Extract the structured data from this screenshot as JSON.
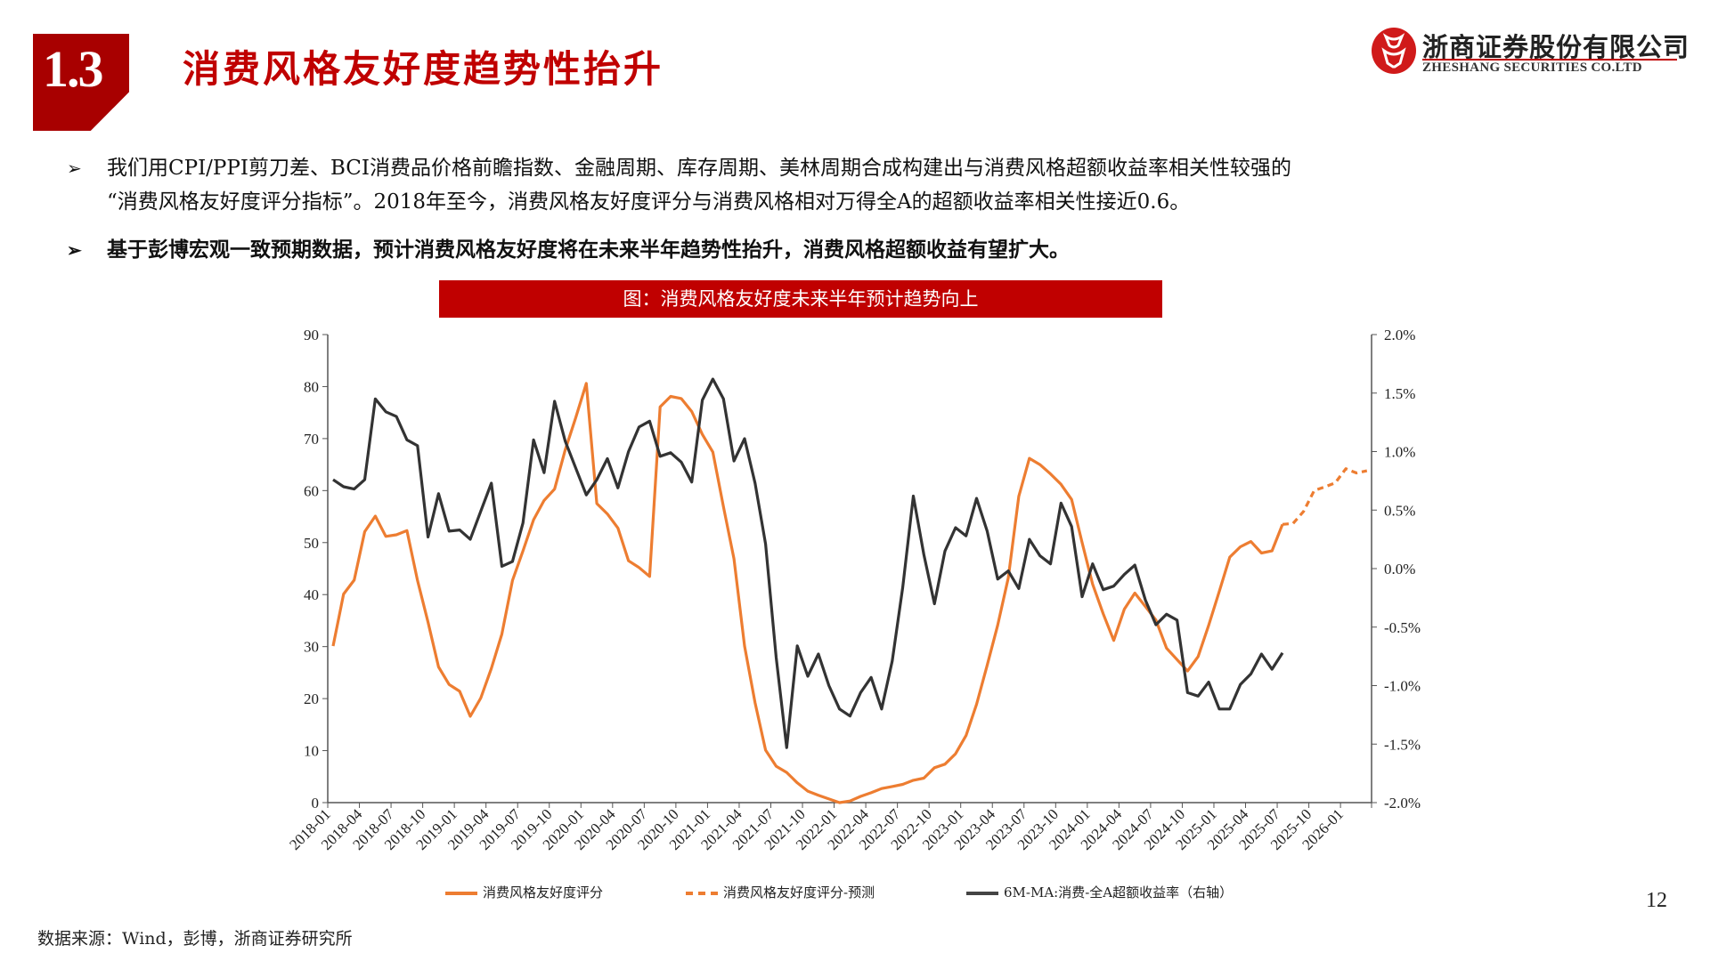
{
  "header": {
    "section_number": "1.3",
    "title": "消费风格友好度趋势性抬升",
    "logo": {
      "icon": "zheshang-logo-icon",
      "name_cn": "浙商证券股份有限公司",
      "name_en": "ZHESHANG SECURITIES CO.LTD"
    }
  },
  "bullets": [
    {
      "icon": "arrow-bullet-icon",
      "glyph": "➢",
      "line1": "我们用CPI/PPI剪刀差、BCI消费品价格前瞻指数、金融周期、库存周期、美林周期合成构建出与消费风格超额收益率相关性较强的",
      "line2": "“消费风格友好度评分指标”。2018年至今，消费风格友好度评分与消费风格相对万得全A的超额收益率相关性接近0.6。"
    },
    {
      "icon": "arrow-bullet-icon",
      "glyph": "➢",
      "line1": "基于彭博宏观一致预期数据，预计消费风格友好度将在未来半年趋势性抬升，消费风格超额收益有望扩大。"
    }
  ],
  "chart_title": "图：消费风格友好度未来半年预计趋势向上",
  "colors": {
    "brand_red": "#c00000",
    "section_red": "#a80000",
    "orange": "#ed7d31",
    "dark": "#333333"
  },
  "chart_data": {
    "type": "line",
    "title": "图：消费风格友好度未来半年预计趋势向上",
    "xlabel": "",
    "ylabel_left": "",
    "ylabel_right": "",
    "x_start": "2018-01",
    "x_frequency": "monthly",
    "x_tick_labels": [
      "2018-01",
      "2018-04",
      "2018-07",
      "2018-10",
      "2019-01",
      "2019-04",
      "2019-07",
      "2019-10",
      "2020-01",
      "2020-04",
      "2020-07",
      "2020-10",
      "2021-01",
      "2021-04",
      "2021-07",
      "2021-10",
      "2022-01",
      "2022-04",
      "2022-07",
      "2022-10",
      "2023-01",
      "2023-04",
      "2023-07",
      "2023-10",
      "2024-01",
      "2024-04",
      "2024-07",
      "2024-10",
      "2025-01",
      "2025-04",
      "2025-07",
      "2025-10",
      "2026-01"
    ],
    "y_left": {
      "min": 0,
      "max": 90,
      "ticks": [
        "0",
        "10",
        "20",
        "30",
        "40",
        "50",
        "60",
        "70",
        "80",
        "90"
      ]
    },
    "y_right": {
      "min": -2.0,
      "max": 2.0,
      "ticks": [
        "-2.0%",
        "-1.5%",
        "-1.0%",
        "-0.5%",
        "0.0%",
        "0.5%",
        "1.0%",
        "1.5%",
        "2.0%"
      ]
    },
    "grid": false,
    "legend_position": "bottom",
    "series": [
      {
        "name": "消费风格友好度评分",
        "axis": "left",
        "style": "solid",
        "color": "#ed7d31",
        "start_index": 0,
        "values": [
          30.1,
          40.1,
          42.8,
          52.1,
          55.1,
          51.2,
          51.5,
          52.3,
          42.7,
          34.7,
          26.1,
          22.7,
          21.4,
          16.6,
          20.1,
          25.8,
          32.4,
          42.7,
          48.4,
          54.4,
          58.1,
          60.3,
          67.8,
          74.0,
          80.6,
          57.5,
          55.5,
          52.8,
          46.5,
          45.2,
          43.5,
          76.1,
          78.1,
          77.7,
          75.2,
          70.8,
          67.4,
          56.9,
          46.9,
          30.1,
          19.2,
          10.1,
          7.0,
          5.8,
          3.8,
          2.2,
          1.4,
          0.7,
          0.0,
          0.3,
          1.2,
          1.9,
          2.7,
          3.1,
          3.5,
          4.3,
          4.7,
          6.7,
          7.4,
          9.4,
          12.9,
          18.9,
          26.4,
          34.1,
          43.2,
          58.9,
          66.2,
          65.0,
          63.2,
          61.2,
          58.3,
          50.0,
          42.0,
          36.3,
          31.2,
          37.2,
          40.3,
          37.7,
          35.1,
          29.7,
          27.5,
          25.3,
          28.1,
          34.1,
          40.6,
          47.2,
          49.2,
          50.2,
          48.0,
          48.4,
          53.5
        ]
      },
      {
        "name": "消费风格友好度评分-预测",
        "axis": "left",
        "style": "dashed",
        "color": "#ed7d31",
        "start_index": 90,
        "values": [
          53.5,
          53.7,
          56.0,
          60.0,
          60.7,
          61.5,
          64.2,
          63.4,
          63.8
        ]
      },
      {
        "name": "6M-MA:消费-全A超额收益率（右轴）",
        "axis": "right",
        "unit": "%",
        "style": "solid",
        "color": "#333333",
        "start_index": 0,
        "values": [
          0.76,
          0.7,
          0.68,
          0.76,
          1.45,
          1.34,
          1.3,
          1.1,
          1.05,
          0.27,
          0.64,
          0.32,
          0.33,
          0.25,
          0.49,
          0.73,
          0.02,
          0.06,
          0.39,
          1.1,
          0.82,
          1.43,
          1.09,
          0.86,
          0.63,
          0.76,
          0.94,
          0.69,
          1.0,
          1.21,
          1.26,
          0.96,
          0.99,
          0.91,
          0.74,
          1.44,
          1.62,
          1.45,
          0.92,
          1.11,
          0.73,
          0.21,
          -0.76,
          -1.53,
          -0.66,
          -0.92,
          -0.73,
          -1.0,
          -1.2,
          -1.26,
          -1.06,
          -0.93,
          -1.2,
          -0.79,
          -0.16,
          0.62,
          0.12,
          -0.3,
          0.15,
          0.35,
          0.28,
          0.6,
          0.32,
          -0.09,
          -0.02,
          -0.17,
          0.25,
          0.11,
          0.04,
          0.56,
          0.36,
          -0.24,
          0.04,
          -0.18,
          -0.15,
          -0.05,
          0.03,
          -0.27,
          -0.48,
          -0.39,
          -0.44,
          -1.06,
          -1.09,
          -0.97,
          -1.2,
          -1.2,
          -0.99,
          -0.9,
          -0.73,
          -0.86,
          -0.72
        ]
      }
    ]
  },
  "legend": [
    {
      "label": "消费风格友好度评分",
      "style": "solid",
      "color": "#ed7d31"
    },
    {
      "label": "消费风格友好度评分-预测",
      "style": "dashed",
      "color": "#ed7d31"
    },
    {
      "label": "6M-MA:消费-全A超额收益率（右轴）",
      "style": "solid",
      "color": "#333333"
    }
  ],
  "footer": {
    "source": "数据来源：Wind，彭博，浙商证券研究所",
    "page_number": "12"
  }
}
